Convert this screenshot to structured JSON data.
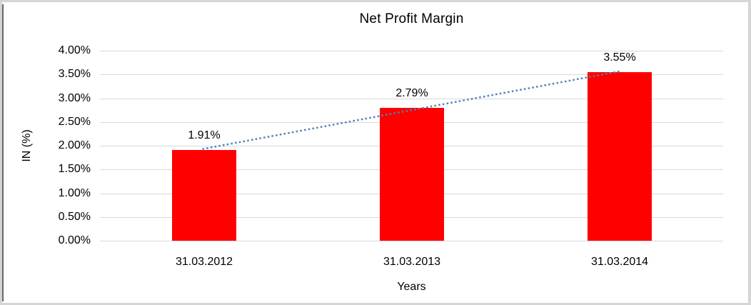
{
  "chart_data": {
    "type": "bar",
    "title": "Net Profit Margin",
    "categories": [
      "31.03.2012",
      "31.03.2013",
      "31.03.2014"
    ],
    "values": [
      1.91,
      2.79,
      3.55
    ],
    "data_labels": [
      "1.91%",
      "2.79%",
      "3.55%"
    ],
    "xlabel": "Years",
    "ylabel": "IN (%)",
    "ylim": [
      0,
      4
    ],
    "ytick_step": 0.5,
    "ytick_labels": [
      "0.00%",
      "0.50%",
      "1.00%",
      "1.50%",
      "2.00%",
      "2.50%",
      "3.00%",
      "3.50%",
      "4.00%"
    ],
    "grid": true,
    "legend": "none",
    "bar_color": "#FF0000",
    "gridline_color": "#D9D9D9",
    "text_color": "#000000",
    "trendline": {
      "type": "linear",
      "style": "dotted",
      "color": "#4F81BD"
    }
  }
}
